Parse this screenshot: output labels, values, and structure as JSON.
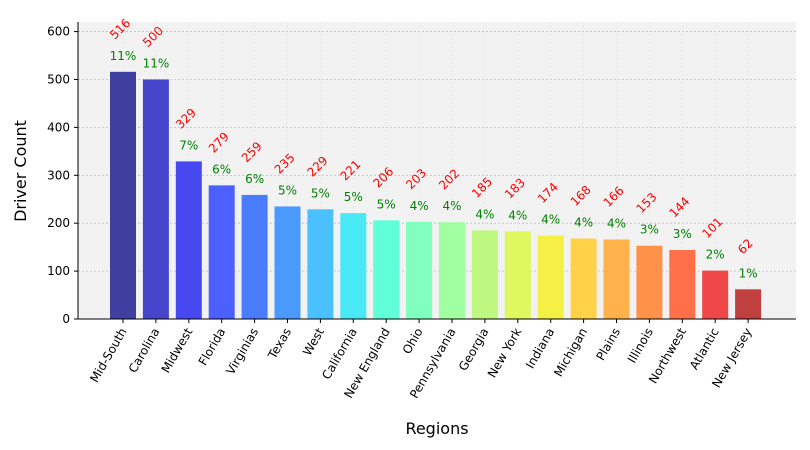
{
  "chart_data": {
    "type": "bar",
    "title": "",
    "xlabel": "Regions",
    "ylabel": "Driver Count",
    "ylim": [
      0,
      620
    ],
    "yticks": [
      0,
      100,
      200,
      300,
      400,
      500,
      600
    ],
    "grid": "y-dashed",
    "background": "#f2f2f2",
    "categories": [
      "Mid-South",
      "Carolina",
      "Midwest",
      "Florida",
      "Virginias",
      "Texas",
      "West",
      "California",
      "New England",
      "Ohio",
      "Pennsylvania",
      "Georgia",
      "New York",
      "Indiana",
      "Michigan",
      "Plains",
      "Illinois",
      "Northwest",
      "Atlantic",
      "New Jersey"
    ],
    "values": [
      516,
      500,
      329,
      279,
      259,
      235,
      229,
      221,
      206,
      203,
      202,
      185,
      183,
      174,
      168,
      166,
      153,
      144,
      101,
      62
    ],
    "percent_labels": [
      "11%",
      "11%",
      "7%",
      "6%",
      "6%",
      "5%",
      "5%",
      "5%",
      "5%",
      "4%",
      "4%",
      "4%",
      "4%",
      "4%",
      "4%",
      "4%",
      "3%",
      "3%",
      "2%",
      "1%"
    ],
    "colors": [
      "#3f3f9f",
      "#4646cc",
      "#4848f0",
      "#4c60ff",
      "#4a7cff",
      "#4a99ff",
      "#4ac0ff",
      "#48e8f5",
      "#60ffd8",
      "#80ffbe",
      "#a0ffa0",
      "#bff880",
      "#dff860",
      "#f5f045",
      "#ffd248",
      "#ffb24a",
      "#ff9248",
      "#ff7048",
      "#f04848",
      "#c04040"
    ],
    "value_label_color": "#ff0000",
    "percent_label_color": "#008000"
  }
}
